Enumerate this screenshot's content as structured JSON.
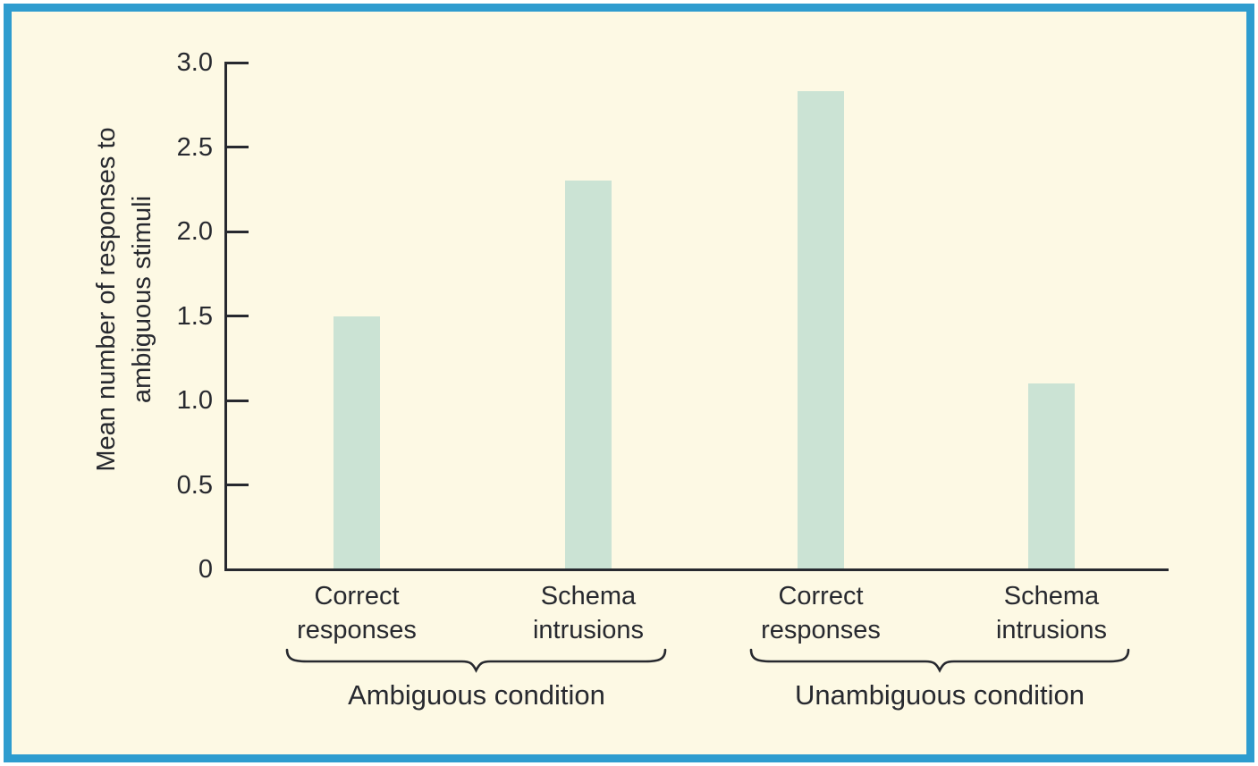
{
  "chart_data": {
    "type": "bar",
    "title": "",
    "ylabel": "Mean number of responses to ambiguous stimuli",
    "ylabel_lines": [
      "Mean number of responses to",
      "ambiguous stimuli"
    ],
    "xlabel": "",
    "ylim": [
      0,
      3.0
    ],
    "yticks": [
      0,
      0.5,
      1.0,
      1.5,
      2.0,
      2.5,
      3.0
    ],
    "ytick_labels": [
      "0",
      "0.5",
      "1.0",
      "1.5",
      "2.0",
      "2.5",
      "3.0"
    ],
    "categories": [
      "Correct responses",
      "Schema intrusions",
      "Correct responses",
      "Schema intrusions"
    ],
    "values": [
      1.5,
      2.3,
      2.83,
      1.1
    ],
    "groups": [
      {
        "label": "Ambiguous condition",
        "bars": [
          0,
          1
        ]
      },
      {
        "label": "Unambiguous condition",
        "bars": [
          2,
          3
        ]
      }
    ],
    "grid": false,
    "legend": null,
    "colors": {
      "bar": "#cbe3d4",
      "background": "#fdf9e4",
      "frame": "#2e9ccf",
      "ink": "#27292f"
    }
  }
}
